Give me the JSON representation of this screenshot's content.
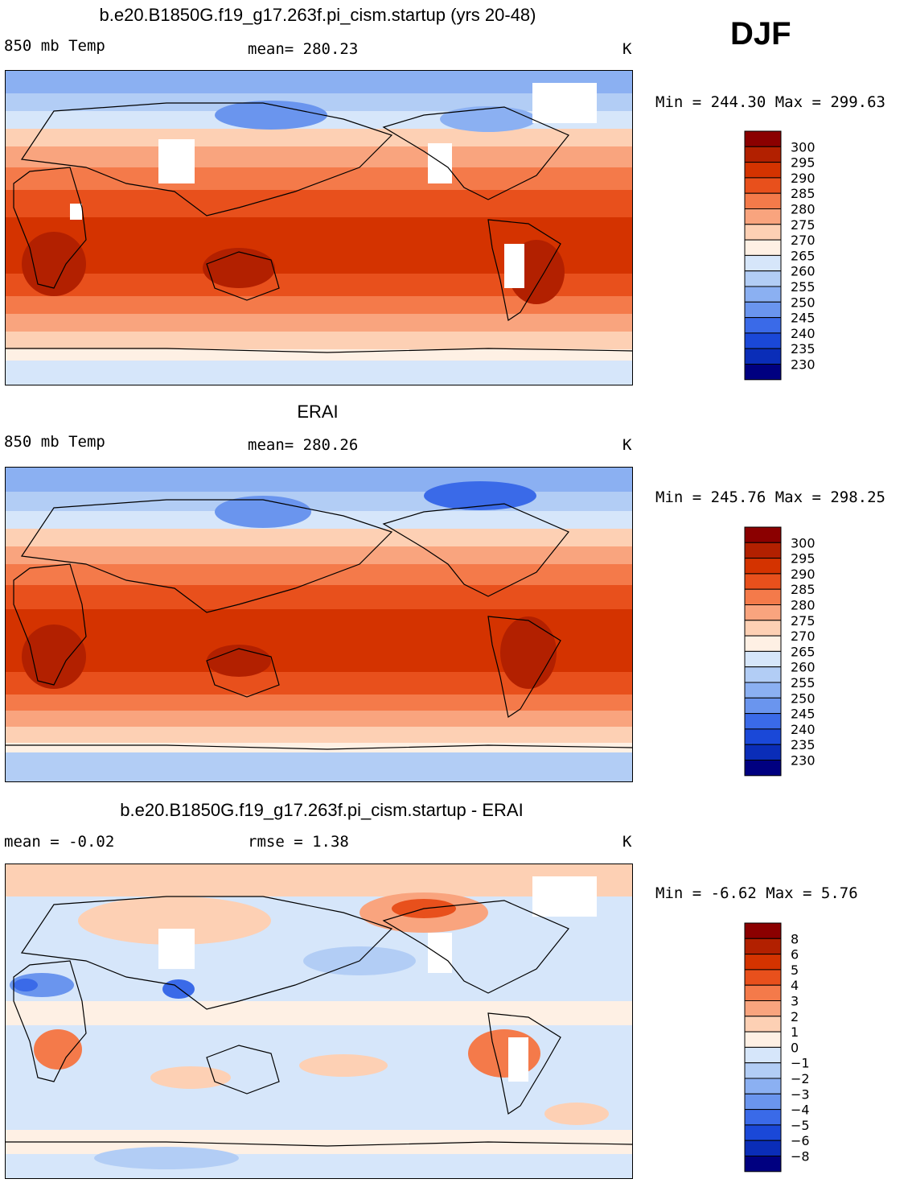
{
  "season": "DJF",
  "panels": [
    {
      "id": "model",
      "title": "b.e20.B1850G.f19_g17.263f.pi_cism.startup (yrs 20-48)",
      "left_label": "850 mb Temp",
      "center_label": "mean=  280.23",
      "units": "K",
      "minmax": "Min =  244.30 Max =  299.63"
    },
    {
      "id": "obs",
      "title": "ERAI",
      "left_label": "850 mb Temp",
      "center_label": "mean=  280.26",
      "units": "K",
      "minmax": "Min =  245.76 Max =  298.25"
    },
    {
      "id": "diff",
      "title": "b.e20.B1850G.f19_g17.263f.pi_cism.startup - ERAI",
      "left_label": "mean =   -0.02",
      "center_label": "rmse =    1.38",
      "units": "K",
      "minmax": "Min =   -6.62 Max =    5.76"
    }
  ],
  "colorbars": {
    "temp": {
      "labels": [
        "300",
        "295",
        "290",
        "285",
        "280",
        "275",
        "270",
        "265",
        "260",
        "255",
        "250",
        "245",
        "240",
        "235",
        "230"
      ],
      "colors": [
        "#8b0000",
        "#b22000",
        "#d43300",
        "#e8501c",
        "#f47a4a",
        "#f9a47e",
        "#fdd0b4",
        "#fef0e4",
        "#d6e6fa",
        "#b2cdf5",
        "#8bb0f2",
        "#6a95ee",
        "#3a6ae8",
        "#1a48d8",
        "#0a2db8",
        "#000080"
      ]
    },
    "diff": {
      "labels": [
        "8",
        "6",
        "5",
        "4",
        "3",
        "2",
        "1",
        "0",
        "−1",
        "−2",
        "−3",
        "−4",
        "−5",
        "−6",
        "−8"
      ],
      "colors": [
        "#8b0000",
        "#b22000",
        "#d43300",
        "#e8501c",
        "#f47a4a",
        "#f9a47e",
        "#fdd0b4",
        "#fef0e4",
        "#d6e6fa",
        "#b2cdf5",
        "#8bb0f2",
        "#6a95ee",
        "#3a6ae8",
        "#1a48d8",
        "#0a2db8",
        "#000080"
      ]
    }
  },
  "chart_data": [
    {
      "type": "heatmap",
      "title": "b.e20.B1850G.f19_g17.263f.pi_cism.startup (yrs 20-48)",
      "variable": "850 mb Temp",
      "units": "K",
      "mean": 280.23,
      "min": 244.3,
      "max": 299.63,
      "levels": [
        230,
        235,
        240,
        245,
        250,
        255,
        260,
        265,
        270,
        275,
        280,
        285,
        290,
        295,
        300
      ],
      "zonal_profile": {
        "lat": [
          90,
          75,
          60,
          45,
          30,
          15,
          0,
          -15,
          -30,
          -45,
          -60,
          -75,
          -90
        ],
        "value": [
          252,
          254,
          262,
          271,
          283,
          292,
          293,
          292,
          287,
          277,
          268,
          262,
          258
        ]
      }
    },
    {
      "type": "heatmap",
      "title": "ERAI",
      "variable": "850 mb Temp",
      "units": "K",
      "mean": 280.26,
      "min": 245.76,
      "max": 298.25,
      "levels": [
        230,
        235,
        240,
        245,
        250,
        255,
        260,
        265,
        270,
        275,
        280,
        285,
        290,
        295,
        300
      ],
      "zonal_profile": {
        "lat": [
          90,
          75,
          60,
          45,
          30,
          15,
          0,
          -15,
          -30,
          -45,
          -60,
          -75,
          -90
        ],
        "value": [
          250,
          253,
          261,
          271,
          283,
          292,
          293,
          292,
          287,
          277,
          267,
          258,
          255
        ]
      }
    },
    {
      "type": "heatmap",
      "title": "b.e20.B1850G.f19_g17.263f.pi_cism.startup - ERAI",
      "variable": "850 mb Temp difference",
      "units": "K",
      "mean": -0.02,
      "rmse": 1.38,
      "min": -6.62,
      "max": 5.76,
      "levels": [
        -8,
        -6,
        -5,
        -4,
        -3,
        -2,
        -1,
        0,
        1,
        2,
        3,
        4,
        5,
        6,
        8
      ]
    }
  ]
}
